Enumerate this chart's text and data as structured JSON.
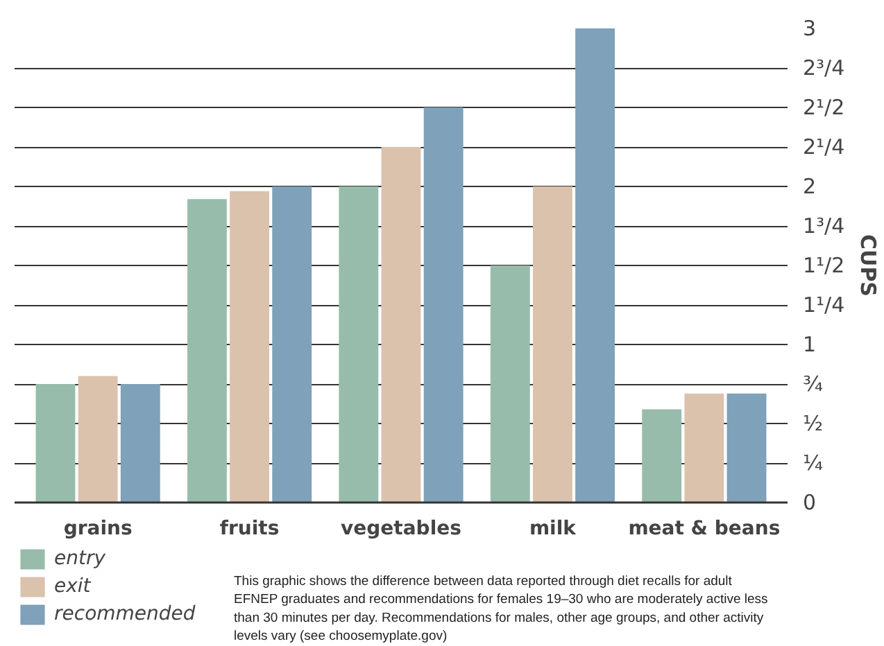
{
  "chart_data": {
    "type": "bar",
    "ylabel": "CUPS",
    "categories": [
      "grains",
      "fruits",
      "vegetables",
      "milk",
      "meat & beans"
    ],
    "series": [
      {
        "name": "entry",
        "color": "#98bcab",
        "values": [
          0.75,
          1.92,
          2.0,
          1.5,
          0.59
        ]
      },
      {
        "name": "exit",
        "color": "#dbc2ad",
        "values": [
          0.8,
          1.97,
          2.25,
          2.0,
          0.69
        ]
      },
      {
        "name": "recommended",
        "color": "#7fa1b9",
        "values": [
          0.75,
          2.0,
          2.5,
          3.0,
          0.69
        ]
      }
    ],
    "ylim": [
      0,
      3
    ],
    "yticks": [
      0,
      {
        "value": 0.25,
        "label": "¼"
      },
      {
        "value": 0.5,
        "label": "½"
      },
      {
        "value": 0.75,
        "label": "¾"
      },
      1,
      {
        "value": 1.25,
        "label": "1¹/4"
      },
      {
        "value": 1.5,
        "label": "1¹/2"
      },
      {
        "value": 1.75,
        "label": "1³/4"
      },
      2,
      {
        "value": 2.25,
        "label": "2¹/4"
      },
      {
        "value": 2.5,
        "label": "2¹/2"
      },
      {
        "value": 2.75,
        "label": "2³/4"
      },
      3
    ],
    "grid": "y",
    "legend": "bottom left",
    "annotations": [
      "This graphic shows the difference between data reported through diet recalls for adult EFNEP graduates and recommendations for females 19–30 who are moderately active less than 30 minutes per day. Recommendations for males, other age groups, and other activity levels vary (see choosemyplate.gov)"
    ]
  }
}
